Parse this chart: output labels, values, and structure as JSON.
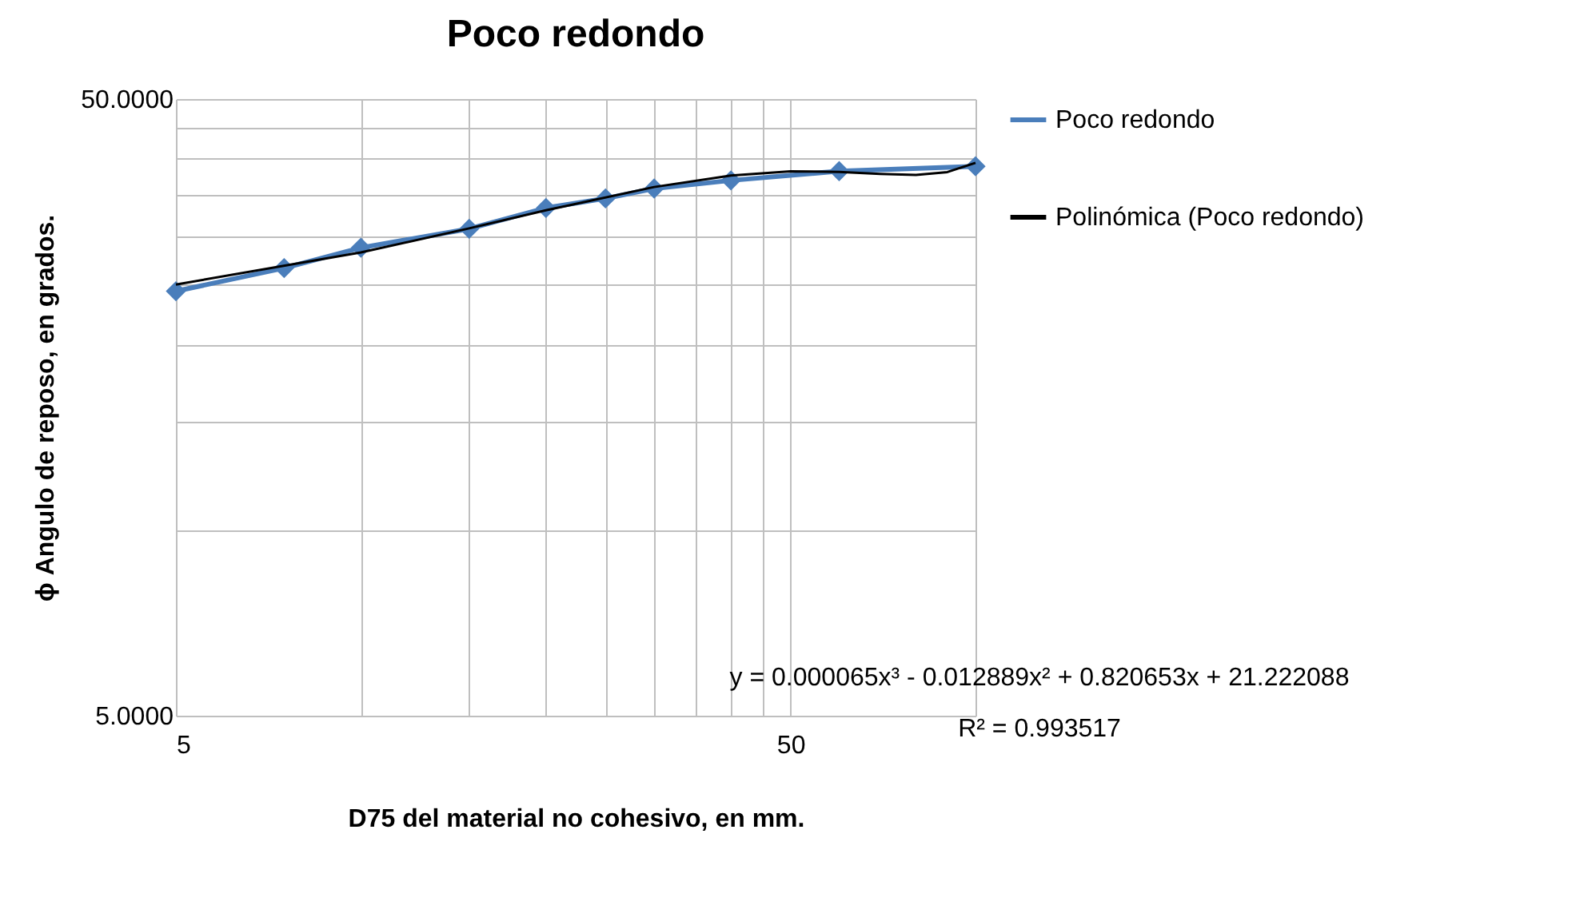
{
  "chart_data": {
    "type": "line",
    "title": "Poco redondo",
    "xlabel": "D75 del material no cohesivo, en mm.",
    "ylabel": "ϕ Angulo de reposo, en grados.",
    "log": "xy",
    "grid": true,
    "legend": "right",
    "marker": "diamond",
    "xlim": [
      5,
      100
    ],
    "xticks": [
      5,
      {
        "value": 10,
        "label": null
      },
      {
        "value": 15,
        "label": null
      },
      {
        "value": 20,
        "label": null
      },
      {
        "value": 25,
        "label": null
      },
      {
        "value": 30,
        "label": null
      },
      {
        "value": 35,
        "label": null
      },
      {
        "value": 40,
        "label": null
      },
      {
        "value": 45,
        "label": null
      },
      50,
      {
        "value": 100,
        "label": null
      }
    ],
    "ylim": [
      5,
      50
    ],
    "yticks": [
      {
        "value": 5,
        "label": "5.0000"
      },
      {
        "value": 10,
        "label": null
      },
      {
        "value": 15,
        "label": null
      },
      {
        "value": 20,
        "label": null
      },
      {
        "value": 25,
        "label": null
      },
      {
        "value": 30,
        "label": null
      },
      {
        "value": 35,
        "label": null
      },
      {
        "value": 40,
        "label": null
      },
      {
        "value": 45,
        "label": null
      },
      {
        "value": 50,
        "label": "50.0000"
      }
    ],
    "series": [
      {
        "name": "Poco redondo",
        "color": "#4a7ebb",
        "x": [
          5,
          7.5,
          10,
          15,
          20,
          25,
          30,
          40,
          60,
          100
        ],
        "values": [
          24.4,
          26.6,
          28.7,
          30.8,
          33.3,
          34.5,
          35.8,
          36.9,
          38.2,
          38.9
        ]
      },
      {
        "name": "Polinómica (Poco redondo)",
        "type": "line",
        "color": "#000000",
        "marker": "none",
        "x": [
          5,
          10,
          15,
          20,
          30,
          40,
          50,
          60,
          70,
          80,
          90,
          100
        ],
        "values": [
          25.01,
          28.2,
          30.85,
          33.0,
          36.0,
          37.59,
          38.16,
          38.1,
          37.81,
          37.66,
          38.07,
          39.4
        ]
      }
    ],
    "annotations": [
      "y = 0.000065x³ - 0.012889x² + 0.820653x + 21.222088",
      "R² = 0.993517"
    ]
  }
}
